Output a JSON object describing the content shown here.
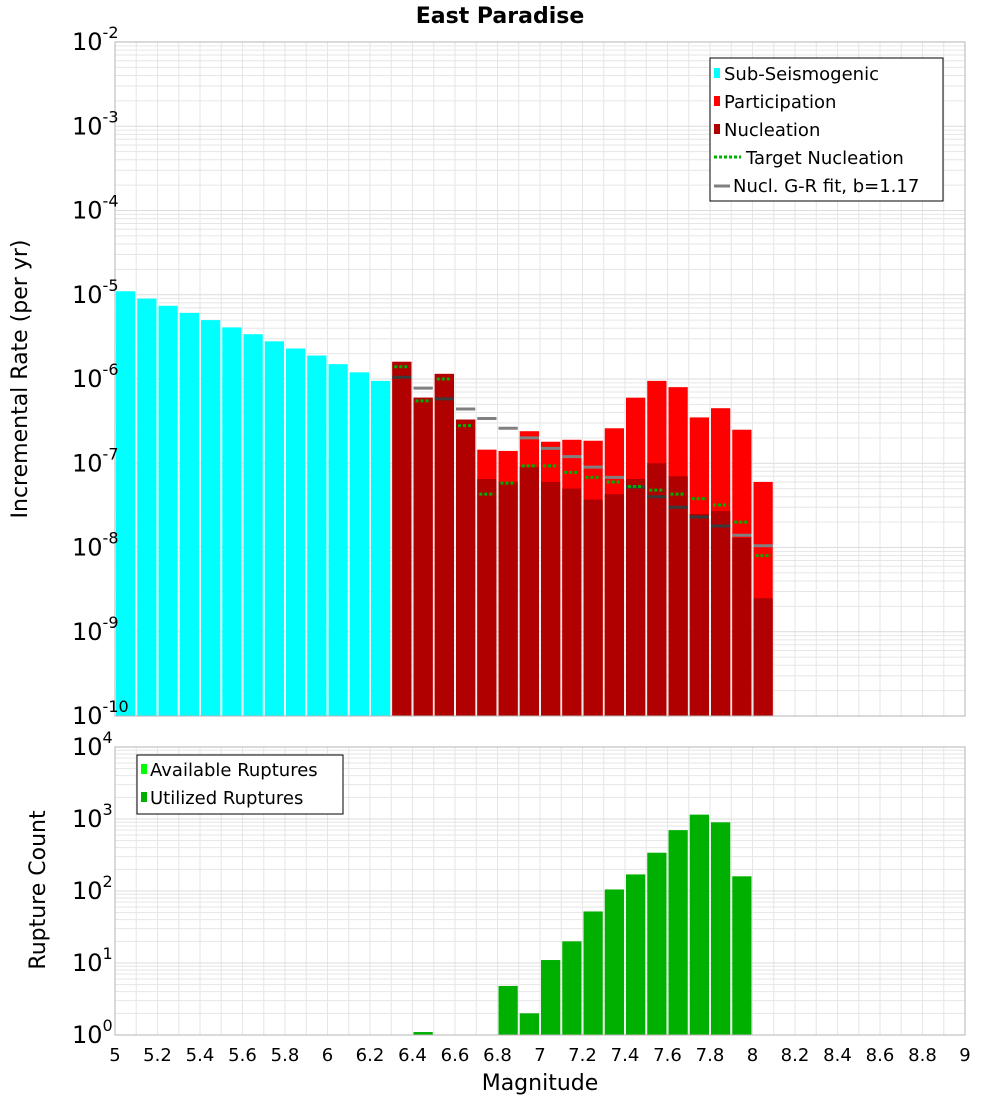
{
  "colors": {
    "sub_seismogenic": "#00ffff",
    "participation": "#ff0000",
    "nucleation": "#b00000",
    "target_nucleation": "#00b000",
    "gr_fit": "#808080",
    "available": "#00ff00",
    "utilized": "#00b000",
    "grid": "#e6e6e6"
  },
  "chart_data": [
    {
      "type": "bar",
      "title": "East Paradise",
      "xlabel": "",
      "ylabel": "Incremental Rate (per yr)",
      "yscale": "log",
      "xlim": [
        5,
        9
      ],
      "ylim": [
        1e-10,
        0.01
      ],
      "grid": true,
      "legend_position": "top-right",
      "legend": [
        {
          "name": "Sub-Seismogenic",
          "key": "sub_seismogenic",
          "style": "box"
        },
        {
          "name": "Participation",
          "key": "participation",
          "style": "box"
        },
        {
          "name": "Nucleation",
          "key": "nucleation",
          "style": "box"
        },
        {
          "name": "Target Nucleation",
          "key": "target_nucleation",
          "style": "dotted"
        },
        {
          "name": "Nucl. G-R fit, b=1.17",
          "key": "gr_fit",
          "style": "line"
        }
      ],
      "bar_width": 0.1,
      "sub_seismogenic": {
        "x": [
          5.05,
          5.15,
          5.25,
          5.35,
          5.45,
          5.55,
          5.65,
          5.75,
          5.85,
          5.95,
          6.05,
          6.15,
          6.25
        ],
        "values": [
          1.1e-05,
          9e-06,
          7.4e-06,
          6.1e-06,
          5e-06,
          4.1e-06,
          3.4e-06,
          2.8e-06,
          2.3e-06,
          1.9e-06,
          1.5e-06,
          1.2e-06,
          9.5e-07
        ]
      },
      "x": [
        6.35,
        6.45,
        6.55,
        6.65,
        6.75,
        6.85,
        6.95,
        7.05,
        7.15,
        7.25,
        7.35,
        7.45,
        7.55,
        7.65,
        7.75,
        7.85,
        7.95,
        8.05
      ],
      "participation": [
        1.6e-06,
        6e-07,
        1.15e-06,
        3.3e-07,
        1.45e-07,
        1.4e-07,
        2.4e-07,
        1.8e-07,
        1.9e-07,
        1.85e-07,
        2.6e-07,
        6e-07,
        9.5e-07,
        8e-07,
        3.5e-07,
        4.5e-07,
        2.5e-07,
        6e-08
      ],
      "nucleation": [
        1.6e-06,
        6e-07,
        1.15e-06,
        3.3e-07,
        6.5e-08,
        6e-08,
        9e-08,
        6e-08,
        5e-08,
        3.7e-08,
        4.3e-08,
        6.5e-08,
        1e-07,
        7e-08,
        2.5e-08,
        2.7e-08,
        1.3e-08,
        2.5e-09
      ],
      "target_nucleation": [
        1.4e-06,
        5.5e-07,
        1e-06,
        2.8e-07,
        4.3e-08,
        5.8e-08,
        9.3e-08,
        9.3e-08,
        7.8e-08,
        6.8e-08,
        6e-08,
        5.3e-08,
        4.8e-08,
        4.3e-08,
        3.8e-08,
        3.2e-08,
        2e-08,
        8e-09
      ],
      "gr_fit": [
        1.05e-06,
        7.8e-07,
        5.8e-07,
        4.4e-07,
        3.4e-07,
        2.6e-07,
        2e-07,
        1.5e-07,
        1.2e-07,
        9e-08,
        6.8e-08,
        5.2e-08,
        4e-08,
        3e-08,
        2.3e-08,
        1.8e-08,
        1.4e-08,
        1.05e-08
      ]
    },
    {
      "type": "bar",
      "title": "",
      "xlabel": "Magnitude",
      "ylabel": "Rupture Count",
      "yscale": "log",
      "xlim": [
        5,
        9
      ],
      "ylim": [
        1,
        10000
      ],
      "grid": true,
      "legend_position": "top-left",
      "legend": [
        {
          "name": "Available Ruptures",
          "key": "available",
          "style": "box"
        },
        {
          "name": "Utilized Ruptures",
          "key": "utilized",
          "style": "box"
        }
      ],
      "x_ticks": [
        "5",
        "5.2",
        "5.4",
        "5.6",
        "5.8",
        "6",
        "6.2",
        "6.4",
        "6.6",
        "6.8",
        "7",
        "7.2",
        "7.4",
        "7.6",
        "7.8",
        "8",
        "8.2",
        "8.4",
        "8.6",
        "8.8",
        "9"
      ],
      "x": [
        6.45,
        6.85,
        6.95,
        7.05,
        7.15,
        7.25,
        7.35,
        7.45,
        7.55,
        7.65,
        7.75,
        7.85,
        7.95
      ],
      "utilized": [
        1.1,
        4.8,
        2.0,
        11,
        20,
        52,
        105,
        170,
        340,
        700,
        1150,
        900,
        160
      ]
    }
  ]
}
